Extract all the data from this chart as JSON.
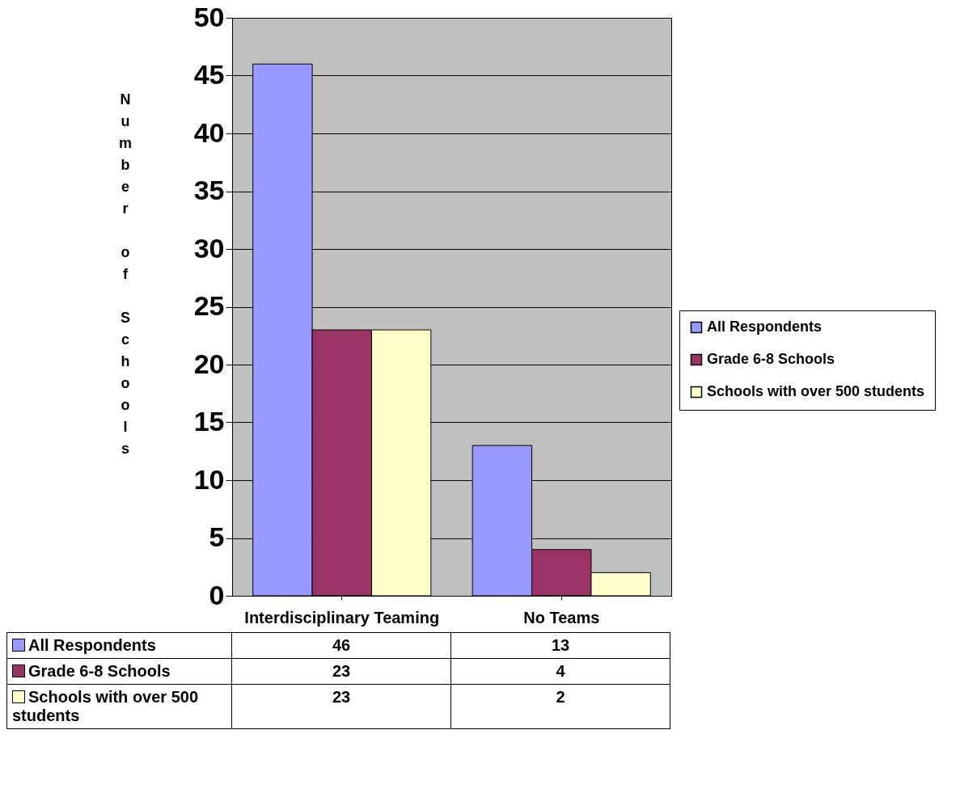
{
  "chart_data": {
    "type": "bar",
    "ylabel": "Number of Schools",
    "categories": [
      "Interdisciplinary Teaming",
      "No Teams"
    ],
    "series": [
      {
        "name": "All Respondents",
        "color": "#9999ff",
        "values": [
          46,
          13
        ]
      },
      {
        "name": "Grade 6-8 Schools",
        "color": "#993366",
        "values": [
          23,
          4
        ]
      },
      {
        "name": "Schools with over 500 students",
        "color": "#ffffcc",
        "values": [
          23,
          2
        ]
      }
    ],
    "ylim": [
      0,
      50
    ],
    "yticks": [
      0,
      5,
      10,
      15,
      20,
      25,
      30,
      35,
      40,
      45,
      50
    ],
    "grid": "y",
    "legend": "right",
    "data_labels": true
  }
}
